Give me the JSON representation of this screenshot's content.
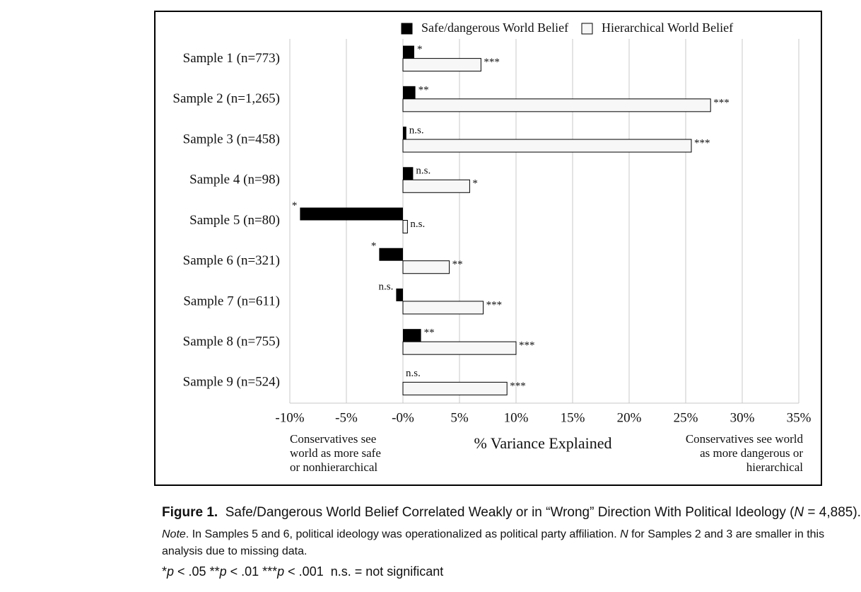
{
  "chart_data": {
    "type": "hbar",
    "categories": [
      "Sample 1 (n=773)",
      "Sample 2 (n=1,265)",
      "Sample 3 (n=458)",
      "Sample 4 (n=98)",
      "Sample 5 (n=80)",
      "Sample 6 (n=321)",
      "Sample 7 (n=611)",
      "Sample 8 (n=755)",
      "Sample 9 (n=524)"
    ],
    "series": [
      {
        "name": "Safe/dangerous World Belief",
        "color": "#000000",
        "values": [
          1.0,
          1.1,
          0.3,
          0.9,
          -9.1,
          -2.1,
          -0.6,
          1.6,
          0
        ],
        "significance": [
          "*",
          "**",
          "n.s.",
          "n.s.",
          "*",
          "*",
          "n.s.",
          "**",
          "n.s."
        ]
      },
      {
        "name": "Hierarchical World Belief",
        "color": "#f7f7f7",
        "values": [
          6.9,
          27.2,
          25.5,
          5.9,
          0.4,
          4.1,
          7.1,
          10.0,
          9.2
        ],
        "significance": [
          "***",
          "***",
          "***",
          "*",
          "n.s.",
          "**",
          "***",
          "***",
          "***"
        ]
      }
    ],
    "xlim": [
      -10,
      35
    ],
    "xticks": [
      {
        "value": -10,
        "label": "-10%"
      },
      {
        "value": -5,
        "label": "-5%"
      },
      {
        "value": 0,
        "label": "-0%"
      },
      {
        "value": 5,
        "label": "5%"
      },
      {
        "value": 10,
        "label": "10%"
      },
      {
        "value": 15,
        "label": "15%"
      },
      {
        "value": 20,
        "label": "20%"
      },
      {
        "value": 25,
        "label": "25%"
      },
      {
        "value": 30,
        "label": "30%"
      },
      {
        "value": 35,
        "label": "35%"
      }
    ],
    "x_label": "% Variance Explained",
    "left_note": [
      "Conservatives see",
      "world as more safe",
      "or nonhierarchical"
    ],
    "right_note": [
      "Conservatives see world",
      "as more dangerous or",
      "hierarchical"
    ],
    "grid": true
  },
  "caption": {
    "label": "Figure 1.",
    "title_parts": [
      "Safe/Dangerous World Belief Correlated Weakly or in “Wrong” Direction With Political Ideology (",
      "N",
      " = 4,885)."
    ],
    "note_parts": [
      "Note",
      ". In Samples 5 and 6, political ideology was operationalized as political party affiliation. ",
      "N",
      " for Samples 2 and 3 are smaller in this analysis due to missing data."
    ],
    "footnote_parts": [
      "*",
      "p",
      " < .05 **",
      "p",
      " < .01 ***",
      "p",
      " < .001",
      "  n.s. = not significant"
    ]
  }
}
